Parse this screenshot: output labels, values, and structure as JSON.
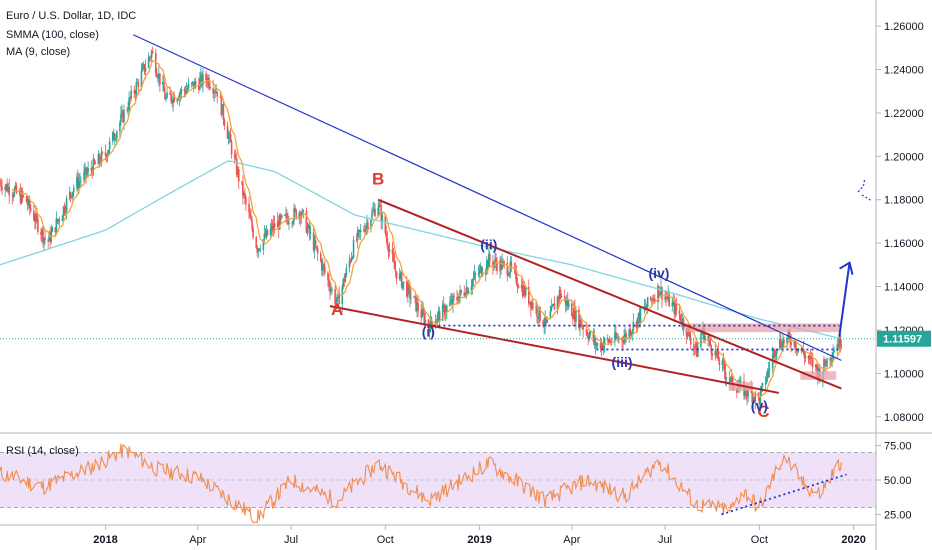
{
  "header": {
    "title": "Euro / U.S. Dollar, 1D, IDC",
    "indicator1": "SMMA (100, close)",
    "indicator2": "MA (9, close)"
  },
  "rsi_label": "RSI (14, close)",
  "last_price_label": "1.11597",
  "colors": {
    "candle_up": "#26a69a",
    "candle_down": "#ef5350",
    "smma": "#7fd6e0",
    "ma": "#f7a23a",
    "trendline_blue": "#2233cc",
    "trendline_red": "#b22222",
    "wave_red": "#e03b2f",
    "wave_blue": "#2a3aa8",
    "zone": "#e8a3aa",
    "rsi_line": "#f28c4f",
    "rsi_band": "#ead7f4"
  },
  "waves": {
    "A": "A",
    "B": "B",
    "C": "C",
    "i": "(i)",
    "ii": "(ii)",
    "iii": "(iii)",
    "iv": "(iv)",
    "v": "(v)"
  },
  "chart_data": [
    {
      "type": "candlestick",
      "title": "Euro / U.S. Dollar, 1D, IDC",
      "series_names": [
        "SMMA (100, close)",
        "MA (9, close)"
      ],
      "x_ticks": [
        "2018",
        "Apr",
        "Jul",
        "Oct",
        "2019",
        "Apr",
        "Jul",
        "Oct",
        "2020"
      ],
      "y_ticks": [
        "1.26000",
        "1.24000",
        "1.22000",
        "1.20000",
        "1.18000",
        "1.16000",
        "1.14000",
        "1.12000",
        "1.10000",
        "1.08000"
      ],
      "ylim": [
        1.073,
        1.272
      ],
      "last_price": 1.11597,
      "price_keypoints": [
        {
          "date": "2017-09-20",
          "price": 1.188
        },
        {
          "date": "2017-10-15",
          "price": 1.18
        },
        {
          "date": "2017-11-05",
          "price": 1.16
        },
        {
          "date": "2017-12-01",
          "price": 1.186
        },
        {
          "date": "2018-01-01",
          "price": 1.201
        },
        {
          "date": "2018-02-15",
          "price": 1.248
        },
        {
          "date": "2018-03-01",
          "price": 1.226
        },
        {
          "date": "2018-04-10",
          "price": 1.236
        },
        {
          "date": "2018-04-20",
          "price": 1.23
        },
        {
          "date": "2018-05-10",
          "price": 1.192
        },
        {
          "date": "2018-05-29",
          "price": 1.158
        },
        {
          "date": "2018-06-15",
          "price": 1.168
        },
        {
          "date": "2018-07-10",
          "price": 1.175
        },
        {
          "date": "2018-08-15",
          "price": 1.132
        },
        {
          "date": "2018-09-01",
          "price": 1.16
        },
        {
          "date": "2018-09-24",
          "price": 1.178
        },
        {
          "date": "2018-10-10",
          "price": 1.148
        },
        {
          "date": "2018-11-12",
          "price": 1.122
        },
        {
          "date": "2018-12-15",
          "price": 1.137
        },
        {
          "date": "2019-01-10",
          "price": 1.152
        },
        {
          "date": "2019-01-31",
          "price": 1.148
        },
        {
          "date": "2019-03-07",
          "price": 1.122
        },
        {
          "date": "2019-03-20",
          "price": 1.137
        },
        {
          "date": "2019-04-25",
          "price": 1.113
        },
        {
          "date": "2019-05-23",
          "price": 1.117
        },
        {
          "date": "2019-06-25",
          "price": 1.139
        },
        {
          "date": "2019-07-15",
          "price": 1.127
        },
        {
          "date": "2019-08-01",
          "price": 1.11
        },
        {
          "date": "2019-08-06",
          "price": 1.12
        },
        {
          "date": "2019-09-03",
          "price": 1.096
        },
        {
          "date": "2019-10-01",
          "price": 1.088
        },
        {
          "date": "2019-10-18",
          "price": 1.114
        },
        {
          "date": "2019-11-01",
          "price": 1.116
        },
        {
          "date": "2019-11-29",
          "price": 1.1
        },
        {
          "date": "2019-12-13",
          "price": 1.112
        },
        {
          "date": "2019-12-20",
          "price": 1.116
        }
      ],
      "smma_keypoints": [
        {
          "date": "2017-09-20",
          "price": 1.15
        },
        {
          "date": "2018-01-01",
          "price": 1.166
        },
        {
          "date": "2018-03-01",
          "price": 1.182
        },
        {
          "date": "2018-05-01",
          "price": 1.198
        },
        {
          "date": "2018-06-15",
          "price": 1.193
        },
        {
          "date": "2018-09-01",
          "price": 1.173
        },
        {
          "date": "2019-01-01",
          "price": 1.159
        },
        {
          "date": "2019-04-01",
          "price": 1.15
        },
        {
          "date": "2019-07-01",
          "price": 1.138
        },
        {
          "date": "2019-10-01",
          "price": 1.125
        },
        {
          "date": "2019-12-20",
          "price": 1.116
        }
      ],
      "annotations": {
        "blue_trendline": [
          {
            "date": "2018-01-28",
            "price": 1.256
          },
          {
            "date": "2019-12-20",
            "price": 1.106
          }
        ],
        "red_upper_line": [
          {
            "date": "2018-09-24",
            "price": 1.18
          },
          {
            "date": "2019-12-20",
            "price": 1.093
          }
        ],
        "red_lower_line": [
          {
            "date": "2018-08-08",
            "price": 1.131
          },
          {
            "date": "2019-10-20",
            "price": 1.091
          }
        ],
        "dotted_levels": [
          {
            "from": "2018-11-12",
            "to": "2019-12-18",
            "price": 1.122
          },
          {
            "from": "2019-04-25",
            "to": "2019-12-18",
            "price": 1.111
          }
        ],
        "zones": [
          {
            "from": "2019-07-20",
            "to": "2019-12-20",
            "low": 1.119,
            "high": 1.123
          },
          {
            "from": "2019-09-01",
            "to": "2019-09-25",
            "low": 1.092,
            "high": 1.096
          },
          {
            "from": "2019-11-10",
            "to": "2019-12-15",
            "low": 1.097,
            "high": 1.101
          }
        ],
        "projection_arrow": [
          {
            "date": "2019-12-18",
            "price": 1.117
          },
          {
            "date": "2019-12-28",
            "price": 1.151
          }
        ],
        "wave_labels": [
          {
            "label": "A",
            "date": "2018-08-15",
            "price": 1.127
          },
          {
            "label": "B",
            "date": "2018-09-24",
            "price": 1.187
          },
          {
            "label": "C",
            "date": "2019-10-05",
            "price": 1.08
          },
          {
            "label": "(i)",
            "date": "2018-11-12",
            "price": 1.117
          },
          {
            "label": "(ii)",
            "date": "2019-01-10",
            "price": 1.157
          },
          {
            "label": "(iii)",
            "date": "2019-05-20",
            "price": 1.103
          },
          {
            "label": "(iv)",
            "date": "2019-06-25",
            "price": 1.144
          },
          {
            "label": "(v)",
            "date": "2019-10-01",
            "price": 1.083
          }
        ]
      }
    },
    {
      "type": "line",
      "title": "RSI (14, close)",
      "y_ticks": [
        "75.00",
        "50.00",
        "25.00"
      ],
      "ylim": [
        18,
        82
      ],
      "bands": {
        "upper": 70,
        "middle": 50,
        "lower": 30
      },
      "keypoints": [
        {
          "date": "2017-09-20",
          "value": 55
        },
        {
          "date": "2017-11-01",
          "value": 45
        },
        {
          "date": "2017-12-20",
          "value": 60
        },
        {
          "date": "2018-01-20",
          "value": 72
        },
        {
          "date": "2018-02-20",
          "value": 58
        },
        {
          "date": "2018-04-01",
          "value": 52
        },
        {
          "date": "2018-05-29",
          "value": 22
        },
        {
          "date": "2018-07-01",
          "value": 50
        },
        {
          "date": "2018-08-15",
          "value": 35
        },
        {
          "date": "2018-09-24",
          "value": 62
        },
        {
          "date": "2018-11-12",
          "value": 35
        },
        {
          "date": "2019-01-10",
          "value": 62
        },
        {
          "date": "2019-03-07",
          "value": 35
        },
        {
          "date": "2019-04-15",
          "value": 50
        },
        {
          "date": "2019-05-23",
          "value": 38
        },
        {
          "date": "2019-06-25",
          "value": 64
        },
        {
          "date": "2019-08-01",
          "value": 32
        },
        {
          "date": "2019-09-03",
          "value": 28
        },
        {
          "date": "2019-09-15",
          "value": 42
        },
        {
          "date": "2019-10-01",
          "value": 30
        },
        {
          "date": "2019-10-25",
          "value": 68
        },
        {
          "date": "2019-11-15",
          "value": 45
        },
        {
          "date": "2019-11-29",
          "value": 40
        },
        {
          "date": "2019-12-20",
          "value": 64
        }
      ],
      "annotations": {
        "support_line": [
          {
            "date": "2019-08-25",
            "value": 25
          },
          {
            "date": "2019-12-25",
            "value": 54
          }
        ]
      }
    }
  ]
}
